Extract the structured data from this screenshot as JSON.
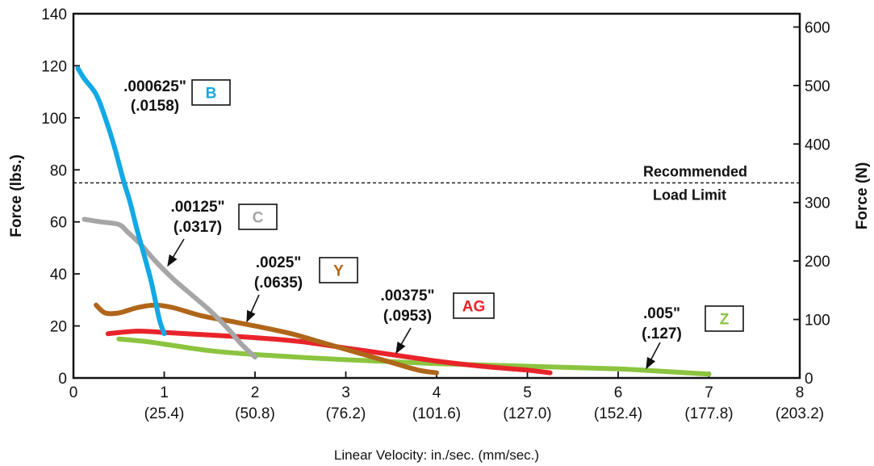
{
  "chart_data": {
    "type": "line",
    "title": "",
    "xlabel": "Linear Velocity: in./sec. (mm/sec.)",
    "ylabel": "Force (lbs.)",
    "y2label": "Force (N)",
    "xlim": [
      0,
      8
    ],
    "ylim": [
      0,
      140
    ],
    "y2lim": [
      0,
      622.75
    ],
    "grid": false,
    "x_ticks": [
      0,
      1,
      2,
      3,
      4,
      5,
      6,
      7,
      8
    ],
    "x_tick_labels": [
      "0",
      "1",
      "2",
      "3",
      "4",
      "5",
      "6",
      "7",
      "8"
    ],
    "x_tick_sublabels": [
      "",
      "(25.4)",
      "(50.8)",
      "(76.2)",
      "(101.6)",
      "(127.0)",
      "(152.4)",
      "(177.8)",
      "(203.2)"
    ],
    "y_ticks": [
      0,
      20,
      40,
      60,
      80,
      100,
      120,
      140
    ],
    "y_tick_labels": [
      "0",
      "20",
      "40",
      "60",
      "80",
      "100",
      "120",
      "140"
    ],
    "y2_ticks": [
      0,
      100,
      200,
      300,
      400,
      500,
      600
    ],
    "y2_tick_labels": [
      "0",
      "100",
      "200",
      "300",
      "400",
      "500",
      "600"
    ],
    "reference_line": {
      "y": 75,
      "label_line1": "Recommended",
      "label_line2": "Load Limit"
    },
    "series": [
      {
        "name": "B",
        "color": "#12a9e4",
        "annotation": {
          "line1": ".000625\"",
          "line2": "(.0158)"
        },
        "points": [
          [
            0.05,
            119
          ],
          [
            0.12,
            115
          ],
          [
            0.25,
            109
          ],
          [
            0.35,
            100
          ],
          [
            0.45,
            89
          ],
          [
            0.55,
            76
          ],
          [
            0.62,
            68
          ],
          [
            0.7,
            57
          ],
          [
            0.78,
            47
          ],
          [
            0.85,
            38
          ],
          [
            0.9,
            30
          ],
          [
            0.95,
            22
          ],
          [
            1.0,
            17
          ]
        ]
      },
      {
        "name": "C",
        "color": "#a6a6a6",
        "annotation": {
          "line1": ".00125\"",
          "line2": "(.0317)"
        },
        "points": [
          [
            0.12,
            61
          ],
          [
            0.3,
            60
          ],
          [
            0.5,
            59
          ],
          [
            0.6,
            56
          ],
          [
            0.75,
            51
          ],
          [
            0.9,
            45
          ],
          [
            1.1,
            38
          ],
          [
            1.3,
            32
          ],
          [
            1.5,
            26
          ],
          [
            1.7,
            19
          ],
          [
            1.85,
            13
          ],
          [
            2.0,
            8
          ]
        ]
      },
      {
        "name": "Y",
        "color": "#b0661a",
        "annotation": {
          "line1": ".0025\"",
          "line2": "(.0635)"
        },
        "points": [
          [
            0.25,
            28
          ],
          [
            0.35,
            25
          ],
          [
            0.5,
            25
          ],
          [
            0.7,
            27
          ],
          [
            0.9,
            28
          ],
          [
            1.1,
            27
          ],
          [
            1.4,
            24
          ],
          [
            1.7,
            22
          ],
          [
            2.0,
            20
          ],
          [
            2.4,
            17
          ],
          [
            2.8,
            13
          ],
          [
            3.2,
            9
          ],
          [
            3.5,
            6
          ],
          [
            3.8,
            3
          ],
          [
            4.0,
            2
          ]
        ]
      },
      {
        "name": "AG",
        "color": "#e8242a",
        "annotation": {
          "line1": ".00375\"",
          "line2": "(.0953)"
        },
        "points": [
          [
            0.38,
            17
          ],
          [
            0.7,
            18
          ],
          [
            1.0,
            17.5
          ],
          [
            1.5,
            16.5
          ],
          [
            2.0,
            15.5
          ],
          [
            2.5,
            14
          ],
          [
            3.0,
            11.5
          ],
          [
            3.5,
            9
          ],
          [
            4.0,
            6.5
          ],
          [
            4.5,
            4.5
          ],
          [
            5.0,
            3
          ],
          [
            5.25,
            2
          ]
        ]
      },
      {
        "name": "Z",
        "color": "#8cc43f",
        "annotation": {
          "line1": ".005\"",
          "line2": "(.127)"
        },
        "points": [
          [
            0.5,
            15
          ],
          [
            0.8,
            14
          ],
          [
            1.0,
            13
          ],
          [
            1.5,
            10.5
          ],
          [
            2.0,
            9
          ],
          [
            3.0,
            7
          ],
          [
            4.0,
            5.5
          ],
          [
            5.0,
            4.5
          ],
          [
            6.0,
            3.5
          ],
          [
            6.5,
            2.5
          ],
          [
            7.0,
            1.5
          ]
        ]
      }
    ]
  }
}
